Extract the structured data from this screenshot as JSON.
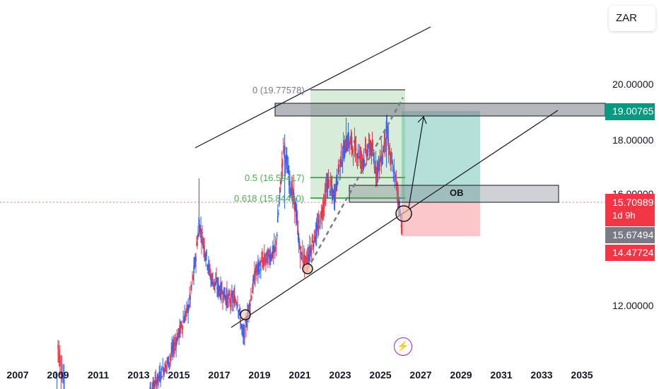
{
  "symbol": "ZAR",
  "price_axis": {
    "ticks": [
      "20.00000",
      "18.00000",
      "16.00000",
      "12.00000"
    ]
  },
  "time_axis": {
    "ticks": [
      "2007",
      "2009",
      "2011",
      "2013",
      "2015",
      "2017",
      "2019",
      "2021",
      "2023",
      "2025",
      "2027",
      "2029",
      "2031",
      "2033",
      "2035"
    ]
  },
  "price_labels": {
    "resistance": "19.00765",
    "last_price": "15.70989",
    "countdown": "1d 9h",
    "mid_price": "15.67494",
    "stop_level": "14.47724"
  },
  "annotations": {
    "fib_0": "0 (19.77578)",
    "fib_05": "0.5 (16.59417)",
    "fib_0618": "0.618 (15.84430)",
    "order_block": "OB"
  },
  "icons": {
    "alert": "lightning-icon"
  },
  "colors": {
    "up_candle": "#2962ff",
    "down_candle": "#f23645",
    "profit_zone": "#089981",
    "loss_zone": "#f23645",
    "fib_line": "#4caf50"
  },
  "chart_data": {
    "type": "candlestick",
    "title": "",
    "xlabel": "",
    "ylabel": "",
    "x_range": [
      2006.5,
      2036.5
    ],
    "ylim": [
      10.0,
      21.0
    ],
    "series": [
      {
        "values_approx": [
          [
            2009.0,
            11.5
          ],
          [
            2009.3,
            10.2
          ],
          [
            2013.5,
            9.8
          ],
          [
            2014.0,
            10.4
          ],
          [
            2014.5,
            11.0
          ],
          [
            2015.0,
            12.0
          ],
          [
            2015.5,
            13.0
          ],
          [
            2015.8,
            14.5
          ],
          [
            2016.0,
            16.0
          ],
          [
            2016.3,
            15.0
          ],
          [
            2016.6,
            14.0
          ],
          [
            2017.0,
            13.6
          ],
          [
            2017.5,
            13.2
          ],
          [
            2017.9,
            13.2
          ],
          [
            2018.2,
            11.8
          ],
          [
            2018.5,
            13.0
          ],
          [
            2018.8,
            14.2
          ],
          [
            2019.2,
            14.6
          ],
          [
            2019.8,
            15.0
          ],
          [
            2020.2,
            18.8
          ],
          [
            2020.5,
            17.5
          ],
          [
            2020.8,
            16.5
          ],
          [
            2021.0,
            15.0
          ],
          [
            2021.3,
            14.5
          ],
          [
            2021.6,
            15.2
          ],
          [
            2022.0,
            16.0
          ],
          [
            2022.4,
            17.5
          ],
          [
            2022.7,
            16.9
          ],
          [
            2023.0,
            18.2
          ],
          [
            2023.4,
            19.0
          ],
          [
            2023.8,
            18.6
          ],
          [
            2024.1,
            18.3
          ],
          [
            2024.5,
            18.8
          ],
          [
            2024.8,
            17.9
          ],
          [
            2025.1,
            18.4
          ],
          [
            2025.3,
            19.4
          ],
          [
            2025.5,
            18.3
          ],
          [
            2025.8,
            17.4
          ],
          [
            2026.1,
            15.7
          ]
        ]
      }
    ],
    "levels": {
      "fib_0": 19.77578,
      "fib_05": 16.59417,
      "fib_0618": 15.8443,
      "resistance_zone": [
        18.8,
        19.2
      ],
      "order_block": [
        15.65,
        16.25
      ],
      "target": 19.00765,
      "entry": 15.70989,
      "stop": 14.47724
    },
    "grid": false,
    "legend": "none"
  }
}
